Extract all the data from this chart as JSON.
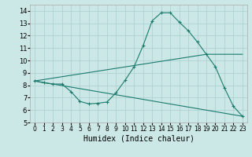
{
  "xlabel": "Humidex (Indice chaleur)",
  "xlim": [
    -0.5,
    23.5
  ],
  "ylim": [
    5,
    14.5
  ],
  "yticks": [
    5,
    6,
    7,
    8,
    9,
    10,
    11,
    12,
    13,
    14
  ],
  "xticks": [
    0,
    1,
    2,
    3,
    4,
    5,
    6,
    7,
    8,
    9,
    10,
    11,
    12,
    13,
    14,
    15,
    16,
    17,
    18,
    19,
    20,
    21,
    22,
    23
  ],
  "bg_color": "#cce8e6",
  "grid_color": "#aacece",
  "line_color": "#1a7a6e",
  "line1_x": [
    0,
    1,
    2,
    3,
    4,
    5,
    6,
    7,
    8,
    9,
    10,
    11,
    12,
    13,
    14,
    15,
    16,
    17,
    18,
    19,
    20,
    21,
    22,
    23
  ],
  "line1_y": [
    8.35,
    8.2,
    8.1,
    8.1,
    7.5,
    6.7,
    6.5,
    6.55,
    6.65,
    7.4,
    8.4,
    9.5,
    11.2,
    13.2,
    13.85,
    13.85,
    13.1,
    12.4,
    11.5,
    10.5,
    9.5,
    7.8,
    6.3,
    5.5
  ],
  "line2_x": [
    0,
    19,
    23
  ],
  "line2_y": [
    8.35,
    10.5,
    10.5
  ],
  "line3_x": [
    0,
    23
  ],
  "line3_y": [
    8.35,
    5.5
  ]
}
